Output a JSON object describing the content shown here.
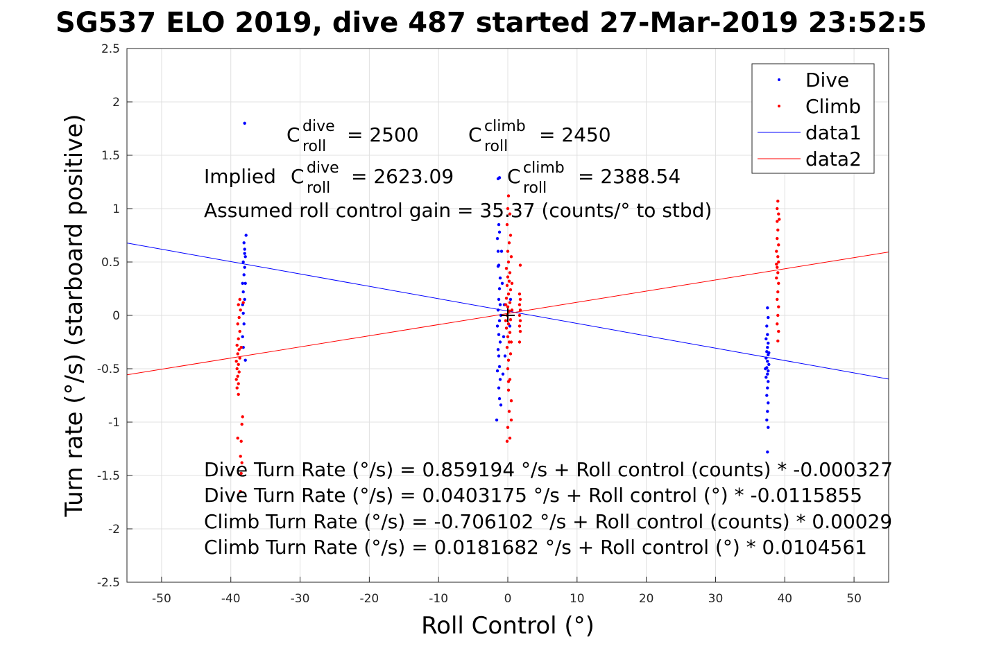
{
  "chart_data": {
    "type": "scatter",
    "title": "SG537 ELO 2019, dive 487 started 27-Mar-2019 23:52:5",
    "xlabel": "Roll Control (°)",
    "ylabel": "Turn rate (°/s) (starboard positive)",
    "xlim": [
      -55,
      55
    ],
    "ylim": [
      -2.5,
      2.5
    ],
    "grid": true,
    "xticks": [
      -50,
      -40,
      -30,
      -20,
      -10,
      0,
      10,
      20,
      30,
      40,
      50
    ],
    "yticks": [
      -2.5,
      -2,
      -1.5,
      -1,
      -0.5,
      0,
      0.5,
      1,
      1.5,
      2,
      2.5
    ],
    "legend_position": "top-right",
    "legend": [
      "Dive",
      "Climb",
      "data1",
      "data2"
    ],
    "colors": {
      "dive": "#0000ff",
      "climb": "#ff0000"
    },
    "series": [
      {
        "name": "Dive",
        "kind": "points",
        "color": "#0000ff",
        "points": [
          [
            -38.0,
            1.8
          ],
          [
            -37.8,
            0.75
          ],
          [
            -38.1,
            0.68
          ],
          [
            -38.0,
            0.62
          ],
          [
            -37.9,
            0.55
          ],
          [
            -38.2,
            0.5
          ],
          [
            -38.0,
            0.45
          ],
          [
            -38.1,
            0.38
          ],
          [
            -37.9,
            0.3
          ],
          [
            -38.2,
            0.22
          ],
          [
            -38.0,
            0.15
          ],
          [
            -38.3,
            0.1
          ],
          [
            -38.2,
            0.02
          ],
          [
            -38.1,
            -0.08
          ],
          [
            -38.3,
            -0.2
          ],
          [
            -38.2,
            -0.3
          ],
          [
            -37.9,
            -0.42
          ],
          [
            -38.3,
            0.3
          ],
          [
            -38.0,
            0.58
          ],
          [
            -1.2,
            1.29
          ],
          [
            -1.4,
            1.28
          ],
          [
            -1.3,
            0.85
          ],
          [
            -1.2,
            0.78
          ],
          [
            -1.5,
            0.72
          ],
          [
            -1.4,
            0.6
          ],
          [
            -1.3,
            0.47
          ],
          [
            -1.4,
            0.46
          ],
          [
            -1.1,
            0.35
          ],
          [
            -1.2,
            0.25
          ],
          [
            -1.3,
            0.15
          ],
          [
            -1.1,
            0.1
          ],
          [
            -1.4,
            0.05
          ],
          [
            -1.0,
            0.0
          ],
          [
            -1.2,
            -0.05
          ],
          [
            -1.5,
            -0.1
          ],
          [
            -1.3,
            -0.18
          ],
          [
            -1.1,
            -0.25
          ],
          [
            -1.4,
            -0.32
          ],
          [
            -1.3,
            -0.38
          ],
          [
            -1.2,
            -0.48
          ],
          [
            -1.5,
            -0.52
          ],
          [
            -1.1,
            -0.6
          ],
          [
            -1.3,
            -0.68
          ],
          [
            -1.2,
            -0.78
          ],
          [
            -1.0,
            -0.84
          ],
          [
            -1.6,
            -0.98
          ],
          [
            -0.5,
            0.1
          ],
          [
            -0.6,
            -0.2
          ],
          [
            -0.4,
            -0.38
          ],
          [
            0.3,
            -0.1
          ],
          [
            0.4,
            0.15
          ],
          [
            -0.8,
            0.3
          ],
          [
            -0.7,
            -0.55
          ],
          [
            -0.9,
            0.6
          ],
          [
            37.5,
            0.07
          ],
          [
            37.6,
            -0.02
          ],
          [
            37.4,
            -0.1
          ],
          [
            37.5,
            -0.18
          ],
          [
            37.3,
            -0.22
          ],
          [
            37.6,
            -0.26
          ],
          [
            37.5,
            -0.3
          ],
          [
            37.4,
            -0.34
          ],
          [
            37.6,
            -0.37
          ],
          [
            37.3,
            -0.4
          ],
          [
            37.5,
            -0.43
          ],
          [
            37.7,
            -0.46
          ],
          [
            37.4,
            -0.49
          ],
          [
            37.6,
            -0.52
          ],
          [
            37.5,
            -0.55
          ],
          [
            37.3,
            -0.58
          ],
          [
            37.6,
            -0.62
          ],
          [
            37.5,
            -0.68
          ],
          [
            37.4,
            -0.75
          ],
          [
            37.6,
            -0.82
          ],
          [
            37.5,
            -0.9
          ],
          [
            37.4,
            -0.98
          ],
          [
            37.6,
            -1.05
          ],
          [
            37.5,
            -1.28
          ],
          [
            37.7,
            -0.35
          ],
          [
            37.2,
            -0.5
          ]
        ]
      },
      {
        "name": "Climb",
        "kind": "points",
        "color": "#ff0000",
        "points": [
          [
            -38.7,
            0.15
          ],
          [
            -38.9,
            0.1
          ],
          [
            -38.6,
            0.05
          ],
          [
            -38.8,
            -0.02
          ],
          [
            -39.0,
            -0.08
          ],
          [
            -38.7,
            -0.15
          ],
          [
            -38.9,
            -0.22
          ],
          [
            -39.1,
            -0.28
          ],
          [
            -38.8,
            -0.32
          ],
          [
            -39.0,
            -0.36
          ],
          [
            -38.7,
            -0.4
          ],
          [
            -39.2,
            -0.43
          ],
          [
            -38.9,
            -0.46
          ],
          [
            -39.1,
            -0.5
          ],
          [
            -38.8,
            -0.53
          ],
          [
            -39.0,
            -0.57
          ],
          [
            -39.2,
            -0.6
          ],
          [
            -38.9,
            -0.64
          ],
          [
            -39.1,
            -0.68
          ],
          [
            -38.9,
            -0.74
          ],
          [
            -38.3,
            -0.95
          ],
          [
            -38.4,
            -1.02
          ],
          [
            -39.0,
            -1.15
          ],
          [
            -38.5,
            -1.18
          ],
          [
            -38.6,
            -1.32
          ],
          [
            -38.4,
            -1.38
          ],
          [
            -38.5,
            -1.48
          ],
          [
            -38.6,
            -1.65
          ],
          [
            -38.2,
            0.12
          ],
          [
            -38.5,
            -0.3
          ],
          [
            0.1,
            1.12
          ],
          [
            0.0,
            1.0
          ],
          [
            0.3,
            0.95
          ],
          [
            -0.1,
            0.85
          ],
          [
            0.4,
            0.75
          ],
          [
            0.2,
            0.68
          ],
          [
            0.0,
            0.6
          ],
          [
            0.5,
            0.55
          ],
          [
            0.1,
            0.5
          ],
          [
            -0.2,
            0.44
          ],
          [
            0.3,
            0.4
          ],
          [
            0.0,
            0.36
          ],
          [
            0.2,
            0.32
          ],
          [
            -0.1,
            0.28
          ],
          [
            0.4,
            0.24
          ],
          [
            0.1,
            0.2
          ],
          [
            -0.2,
            0.16
          ],
          [
            0.3,
            0.12
          ],
          [
            0.0,
            0.08
          ],
          [
            0.2,
            0.04
          ],
          [
            -0.1,
            0.0
          ],
          [
            0.4,
            -0.04
          ],
          [
            0.1,
            -0.08
          ],
          [
            -0.2,
            -0.12
          ],
          [
            0.3,
            -0.16
          ],
          [
            0.0,
            -0.2
          ],
          [
            0.2,
            -0.25
          ],
          [
            -0.1,
            -0.3
          ],
          [
            0.4,
            -0.36
          ],
          [
            0.1,
            -0.42
          ],
          [
            0.0,
            -0.5
          ],
          [
            0.3,
            -0.6
          ],
          [
            0.1,
            -0.7
          ],
          [
            0.5,
            -0.8
          ],
          [
            0.2,
            -0.9
          ],
          [
            0.5,
            -0.98
          ],
          [
            0.0,
            -1.05
          ],
          [
            0.3,
            -1.15
          ],
          [
            -0.1,
            -1.18
          ],
          [
            0.1,
            -0.62
          ],
          [
            -0.3,
            0.1
          ],
          [
            -0.3,
            -0.05
          ],
          [
            0.6,
            0.05
          ],
          [
            0.6,
            0.3
          ],
          [
            0.5,
            -0.25
          ],
          [
            1.7,
            0.2
          ],
          [
            1.8,
            0.15
          ],
          [
            1.7,
            0.1
          ],
          [
            1.8,
            0.05
          ],
          [
            1.7,
            0.0
          ],
          [
            1.8,
            -0.05
          ],
          [
            1.7,
            -0.1
          ],
          [
            1.8,
            -0.15
          ],
          [
            1.8,
            0.47
          ],
          [
            1.7,
            -0.25
          ],
          [
            39.0,
            1.07
          ],
          [
            38.9,
            1.0
          ],
          [
            39.1,
            0.95
          ],
          [
            38.9,
            0.88
          ],
          [
            39.0,
            0.8
          ],
          [
            38.9,
            0.72
          ],
          [
            39.1,
            0.66
          ],
          [
            38.8,
            0.6
          ],
          [
            39.0,
            0.55
          ],
          [
            39.1,
            0.5
          ],
          [
            38.9,
            0.45
          ],
          [
            39.0,
            0.4
          ],
          [
            38.8,
            0.35
          ],
          [
            39.1,
            0.3
          ],
          [
            39.0,
            0.22
          ],
          [
            38.9,
            0.15
          ],
          [
            39.1,
            0.08
          ],
          [
            39.0,
            0.0
          ],
          [
            38.9,
            -0.08
          ],
          [
            39.1,
            -0.15
          ],
          [
            39.0,
            -0.24
          ],
          [
            38.8,
            0.48
          ],
          [
            39.2,
            0.9
          ]
        ]
      },
      {
        "name": "data1",
        "kind": "line",
        "color": "#0000ff",
        "intercept": 0.0403175,
        "slope": -0.0115855
      },
      {
        "name": "data2",
        "kind": "line",
        "color": "#ff0000",
        "intercept": 0.0181682,
        "slope": 0.0104561
      }
    ],
    "mean_marker": [
      0,
      0
    ],
    "annotations": {
      "c_dive": "= 2500",
      "c_climb": "= 2450",
      "implied_prefix": "Implied",
      "implied_dive": "= 2623.09",
      "implied_climb": "= 2388.54",
      "c_symbol": "C",
      "sup_dive": "dive",
      "sup_climb": "climb",
      "sub_roll": "roll",
      "gain": "Assumed roll control gain = 35.37 (counts/° to stbd)",
      "eq1": "Dive Turn Rate (°/s) = 0.859194 °/s + Roll control (counts) * -0.000327",
      "eq2": "Dive Turn Rate (°/s) = 0.0403175 °/s + Roll control (°) * -0.0115855",
      "eq3": "Climb Turn Rate (°/s) = -0.706102 °/s + Roll control (counts) * 0.00029",
      "eq4": "Climb Turn Rate (°/s) = 0.0181682 °/s + Roll control (°) * 0.0104561"
    }
  }
}
